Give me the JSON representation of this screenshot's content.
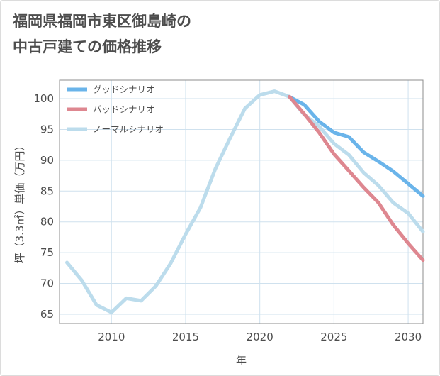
{
  "title_line1": "福岡県福岡市東区御島崎の",
  "title_line2": "中古戸建ての価格推移",
  "chart_data": {
    "type": "line",
    "xlabel": "年",
    "ylabel": "坪（3.3㎡）単価（万円）",
    "xlim": [
      2006.5,
      2031
    ],
    "ylim": [
      63.5,
      103
    ],
    "xticks": [
      2010,
      2015,
      2020,
      2025,
      2030
    ],
    "yticks": [
      65,
      70,
      75,
      80,
      85,
      90,
      95,
      100
    ],
    "grid": true,
    "legend_position": "top-left",
    "series": [
      {
        "name": "グッドシナリオ",
        "color": "#6ab4ea",
        "x": [
          2022,
          2023,
          2024,
          2025,
          2026,
          2027,
          2028,
          2029,
          2030,
          2031
        ],
        "y": [
          100.3,
          99.0,
          96.3,
          94.5,
          93.8,
          91.3,
          89.8,
          88.2,
          86.2,
          84.2
        ]
      },
      {
        "name": "バッドシナリオ",
        "color": "#de8790",
        "x": [
          2022,
          2023,
          2024,
          2025,
          2026,
          2027,
          2028,
          2029,
          2030,
          2031
        ],
        "y": [
          100.3,
          97.5,
          94.5,
          91.0,
          88.3,
          85.6,
          83.1,
          79.5,
          76.5,
          73.8
        ]
      },
      {
        "name": "ノーマルシナリオ",
        "color": "#bcdcec",
        "x": [
          2007,
          2008,
          2009,
          2010,
          2011,
          2012,
          2013,
          2014,
          2015,
          2016,
          2017,
          2018,
          2019,
          2020,
          2021,
          2022,
          2023,
          2024,
          2025,
          2026,
          2027,
          2028,
          2029,
          2030,
          2031
        ],
        "y": [
          73.4,
          70.5,
          66.5,
          65.3,
          67.6,
          67.2,
          69.6,
          73.3,
          78.0,
          82.3,
          88.6,
          93.6,
          98.4,
          100.6,
          101.2,
          100.3,
          97.4,
          95.5,
          92.7,
          90.9,
          88.0,
          85.9,
          83.1,
          81.4,
          78.4
        ]
      }
    ]
  }
}
